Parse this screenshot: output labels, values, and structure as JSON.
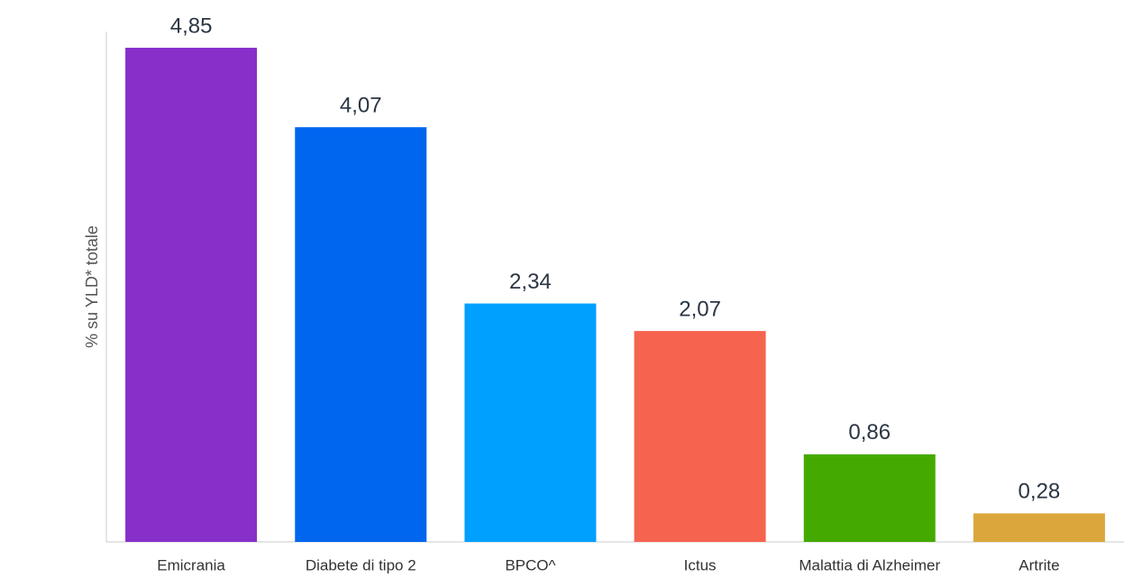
{
  "chart_data": {
    "type": "bar",
    "y_label": "% su YLD* totale",
    "categories": [
      "Emicrania",
      "Diabete di tipo 2",
      "BPCO^",
      "Ictus",
      "Malattia di Alzheimer",
      "Artrite"
    ],
    "values": [
      4.85,
      4.07,
      2.34,
      2.07,
      0.86,
      0.28
    ],
    "value_labels": [
      "4,85",
      "4,07",
      "2,34",
      "2,07",
      "0,86",
      "0,28"
    ],
    "colors": [
      "#8630c9",
      "#0066f0",
      "#00a0ff",
      "#f6634f",
      "#45aa00",
      "#dba73c"
    ],
    "ylim": [
      0,
      5
    ]
  }
}
